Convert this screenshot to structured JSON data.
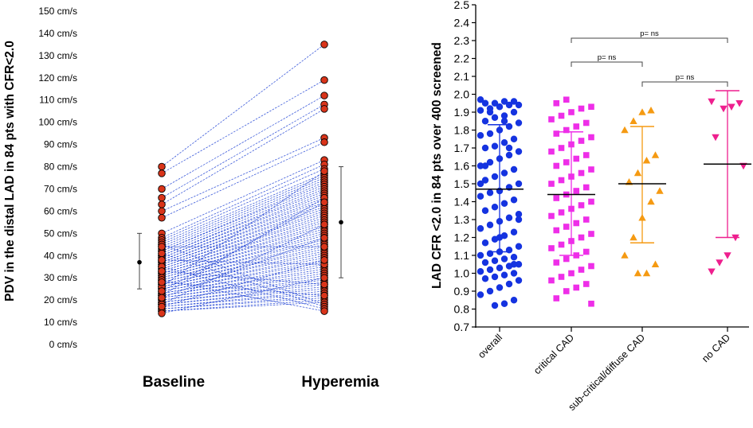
{
  "chart_data": [
    {
      "type": "scatter",
      "panel": "paired-velocity",
      "ylabel": "PDV in the distal LAD in 84 pts with CFR<2.0",
      "ylim": [
        0,
        150
      ],
      "y_ticks": [
        0,
        10,
        20,
        30,
        40,
        50,
        60,
        70,
        80,
        90,
        100,
        110,
        120,
        130,
        140,
        150
      ],
      "tick_unit": "cm/s",
      "categories": [
        "Baseline",
        "Hyperemia"
      ],
      "baseline_values": [
        80,
        77,
        70,
        66,
        63,
        60,
        57,
        50,
        48,
        47,
        46,
        45,
        44,
        43,
        42,
        42,
        41,
        40,
        40,
        39,
        39,
        38,
        38,
        37,
        37,
        36,
        36,
        35,
        35,
        34,
        34,
        33,
        33,
        32,
        32,
        31,
        31,
        30,
        30,
        29,
        29,
        28,
        28,
        27,
        27,
        26,
        26,
        25,
        25,
        24,
        24,
        23,
        23,
        22,
        22,
        21,
        21,
        20,
        20,
        19,
        19,
        18,
        18,
        17,
        17,
        16,
        16,
        15,
        15,
        45,
        41,
        35,
        29,
        26,
        22,
        18,
        44,
        38,
        33,
        28,
        24,
        21,
        17,
        14
      ],
      "hyperemia_values": [
        135,
        119,
        112,
        108,
        106,
        93,
        91,
        83,
        81,
        79,
        77,
        76,
        75,
        74,
        73,
        72,
        71,
        70,
        69,
        68,
        67,
        66,
        65,
        64,
        63,
        62,
        61,
        60,
        59,
        58,
        57,
        56,
        55,
        54,
        53,
        52,
        51,
        50,
        49,
        48,
        47,
        46,
        45,
        44,
        43,
        42,
        41,
        40,
        39,
        38,
        37,
        36,
        35,
        34,
        33,
        32,
        31,
        30,
        29,
        28,
        27,
        26,
        25,
        24,
        23,
        22,
        21,
        20,
        19,
        18,
        17,
        16,
        15,
        78,
        66,
        54,
        44,
        36,
        27,
        22,
        64,
        48,
        38,
        30
      ],
      "summary": [
        {
          "category": "Baseline",
          "mean": 37,
          "low": 25,
          "high": 50
        },
        {
          "category": "Hyperemia",
          "mean": 55,
          "low": 30,
          "high": 80
        }
      ]
    },
    {
      "type": "scatter",
      "panel": "cfr-by-group",
      "ylabel": "LAD CFR <2.0 in 84 pts over 400 screened",
      "ylim": [
        0.7,
        2.5
      ],
      "y_ticks": [
        "0.7",
        "0.8",
        "0.9",
        "1.0",
        "1.1",
        "1.2",
        "1.3",
        "1.4",
        "1.5",
        "1.6",
        "1.7",
        "1.8",
        "1.9",
        "2.0",
        "2.1",
        "2.2",
        "2.3",
        "2.4",
        "2.5"
      ],
      "categories": [
        "overall",
        "critical CAD",
        "sub-critical/diffuse CAD",
        "no CAD"
      ],
      "series": [
        {
          "name": "overall",
          "color": "#1533e0",
          "marker": "circle",
          "mean": 1.47,
          "low": 1.12,
          "high": 1.83,
          "values": [
            1.97,
            1.96,
            1.96,
            1.95,
            1.95,
            1.94,
            1.94,
            1.93,
            1.92,
            1.91,
            1.9,
            1.88,
            1.87,
            1.85,
            1.84,
            1.82,
            1.8,
            1.78,
            1.77,
            1.75,
            1.73,
            1.71,
            1.7,
            1.68,
            1.66,
            1.64,
            1.62,
            1.6,
            1.58,
            1.56,
            1.54,
            1.52,
            1.5,
            1.48,
            1.46,
            1.45,
            1.43,
            1.41,
            1.39,
            1.37,
            1.35,
            1.33,
            1.31,
            1.29,
            1.27,
            1.25,
            1.23,
            1.21,
            1.19,
            1.17,
            1.15,
            1.13,
            1.12,
            1.11,
            1.1,
            1.09,
            1.08,
            1.07,
            1.06,
            1.05,
            1.04,
            1.03,
            1.02,
            1.01,
            1.0,
            0.99,
            0.98,
            0.97,
            0.96,
            0.94,
            0.92,
            0.9,
            0.88,
            0.85,
            0.83,
            0.82,
            1.6,
            1.3,
            1.7,
            1.2,
            1.9,
            1.5,
            1.05,
            1.85
          ]
        },
        {
          "name": "critical CAD",
          "color": "#ee2ee8",
          "marker": "square",
          "mean": 1.44,
          "low": 1.1,
          "high": 1.79,
          "values": [
            1.97,
            1.95,
            1.93,
            1.92,
            1.9,
            1.88,
            1.86,
            1.84,
            1.82,
            1.8,
            1.78,
            1.76,
            1.74,
            1.72,
            1.7,
            1.68,
            1.66,
            1.64,
            1.62,
            1.6,
            1.58,
            1.56,
            1.54,
            1.52,
            1.5,
            1.48,
            1.46,
            1.44,
            1.42,
            1.4,
            1.38,
            1.36,
            1.34,
            1.32,
            1.3,
            1.28,
            1.26,
            1.24,
            1.22,
            1.2,
            1.18,
            1.16,
            1.14,
            1.12,
            1.1,
            1.08,
            1.06,
            1.04,
            1.02,
            1.0,
            0.98,
            0.96,
            0.94,
            0.92,
            0.9,
            0.86,
            0.83
          ]
        },
        {
          "name": "sub-critical/diffuse CAD",
          "color": "#f59a12",
          "marker": "triangle-up",
          "mean": 1.5,
          "low": 1.17,
          "high": 1.82,
          "values": [
            1.91,
            1.9,
            1.85,
            1.8,
            1.66,
            1.63,
            1.56,
            1.51,
            1.46,
            1.4,
            1.31,
            1.2,
            1.1,
            1.05,
            1.0,
            1.0
          ]
        },
        {
          "name": "no CAD",
          "color": "#ee1f8e",
          "marker": "triangle-down",
          "mean": 1.61,
          "low": 1.2,
          "high": 2.02,
          "values": [
            1.96,
            1.95,
            1.93,
            1.92,
            1.76,
            1.6,
            1.2,
            1.1,
            1.06,
            1.01
          ]
        }
      ],
      "annotations": [
        {
          "text": "p= ns",
          "between": [
            "critical CAD",
            "no CAD"
          ]
        },
        {
          "text": "p= ns",
          "between": [
            "critical CAD",
            "sub-critical/diffuse CAD"
          ]
        },
        {
          "text": "p= ns",
          "between": [
            "sub-critical/diffuse CAD",
            "no CAD"
          ]
        }
      ]
    }
  ]
}
